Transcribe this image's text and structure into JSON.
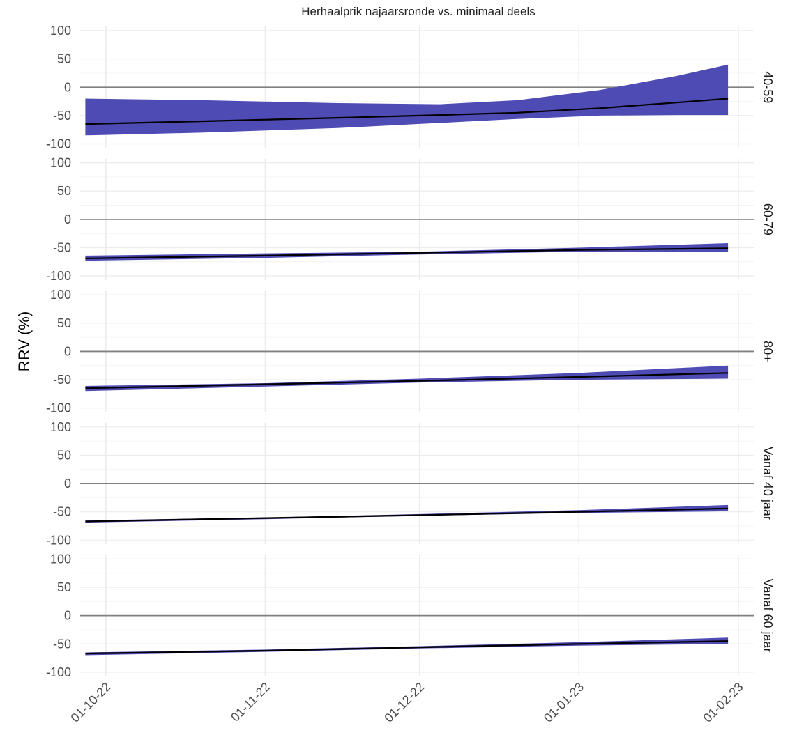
{
  "chart_data": {
    "type": "area",
    "title": "Herhaalprik najaarsronde vs. minimaal deels",
    "xlabel": "",
    "ylabel": "RRV (%)",
    "ylim": [
      -100,
      100
    ],
    "yticks": [
      100,
      50,
      0,
      -50,
      -100
    ],
    "ytick_labels": [
      "100",
      "50",
      "0",
      "-50",
      "-100"
    ],
    "xlim": [
      "2022-09-26",
      "2023-02-04"
    ],
    "xticks": [
      "2022-10-01",
      "2022-11-01",
      "2022-12-01",
      "2023-01-01",
      "2023-02-01"
    ],
    "xtick_labels": [
      "01-10-22",
      "01-11-22",
      "01-12-22",
      "01-01-23",
      "01-02-23"
    ],
    "grid": true,
    "reference_line": 0,
    "colors": {
      "ribbon": "#4f4bb4",
      "line": "#000000",
      "zero_line": "#808080",
      "grid": "#ebebeb"
    },
    "panels": [
      {
        "label": "40-59",
        "x": [
          "2022-09-27",
          "2022-10-20",
          "2022-11-15",
          "2022-12-05",
          "2022-12-20",
          "2023-01-05",
          "2023-01-20",
          "2023-01-30"
        ],
        "estimate": [
          -65,
          -60,
          -54,
          -49,
          -45,
          -37,
          -27,
          -20
        ],
        "lower": [
          -85,
          -80,
          -72,
          -63,
          -56,
          -50,
          -49,
          -49
        ],
        "upper": [
          -20,
          -23,
          -28,
          -30,
          -23,
          -5,
          20,
          40
        ]
      },
      {
        "label": "60-79",
        "x": [
          "2022-09-27",
          "2022-11-01",
          "2022-12-01",
          "2023-01-01",
          "2023-01-30"
        ],
        "estimate": [
          -69,
          -64,
          -59,
          -54,
          -51
        ],
        "lower": [
          -73,
          -68,
          -62,
          -57,
          -57
        ],
        "upper": [
          -64,
          -60,
          -57,
          -50,
          -42
        ]
      },
      {
        "label": "80+",
        "x": [
          "2022-09-27",
          "2022-11-01",
          "2022-12-01",
          "2023-01-01",
          "2023-01-30"
        ],
        "estimate": [
          -65,
          -58,
          -52,
          -45,
          -38
        ],
        "lower": [
          -70,
          -62,
          -55,
          -50,
          -48
        ],
        "upper": [
          -61,
          -56,
          -48,
          -38,
          -25
        ]
      },
      {
        "label": "Vanaf 40 jaar",
        "x": [
          "2022-09-27",
          "2022-11-01",
          "2022-12-01",
          "2023-01-01",
          "2023-01-30"
        ],
        "estimate": [
          -67,
          -61,
          -56,
          -50,
          -44
        ],
        "lower": [
          -69,
          -63,
          -57,
          -52,
          -49
        ],
        "upper": [
          -65,
          -60,
          -54,
          -47,
          -38
        ]
      },
      {
        "label": "Vanaf 60 jaar",
        "x": [
          "2022-09-27",
          "2022-11-01",
          "2022-12-01",
          "2023-01-01",
          "2023-01-30"
        ],
        "estimate": [
          -67,
          -62,
          -56,
          -50,
          -45
        ],
        "lower": [
          -70,
          -64,
          -58,
          -53,
          -50
        ],
        "upper": [
          -65,
          -60,
          -54,
          -47,
          -39
        ]
      }
    ]
  }
}
